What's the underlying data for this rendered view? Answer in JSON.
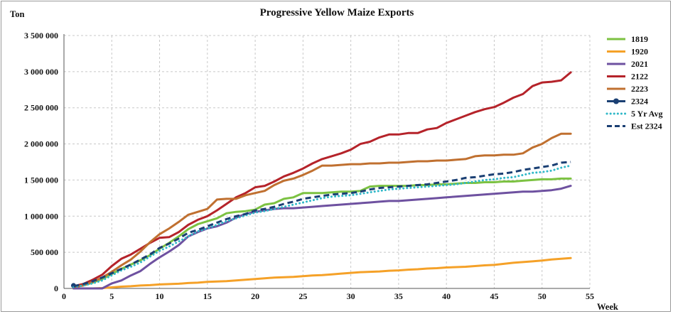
{
  "chart_data": {
    "type": "line",
    "title": "Progressive Yellow Maize Exports",
    "ylabel": "Ton",
    "xlabel": "Week",
    "xlim": [
      0,
      55
    ],
    "ylim": [
      0,
      3500000
    ],
    "xticks": [
      0,
      5,
      10,
      15,
      20,
      25,
      30,
      35,
      40,
      45,
      50,
      55
    ],
    "yticks": [
      0,
      500000,
      1000000,
      1500000,
      2000000,
      2500000,
      3000000,
      3500000
    ],
    "ytick_labels": [
      "0",
      "500 000",
      "1 000 000",
      "1 500 000",
      "2 000 000",
      "2 500 000",
      "3 000 000",
      "3 500 000"
    ],
    "xtick_labels": [
      "0",
      "5",
      "10",
      "15",
      "20",
      "25",
      "30",
      "35",
      "40",
      "45",
      "50",
      "55"
    ],
    "grid": true,
    "legend_position": "right",
    "series": [
      {
        "name": "1819",
        "color": "#7cc242",
        "style": "solid",
        "x": [
          1,
          2,
          3,
          4,
          5,
          6,
          7,
          8,
          9,
          10,
          11,
          12,
          13,
          14,
          15,
          16,
          17,
          18,
          19,
          20,
          21,
          22,
          23,
          24,
          25,
          26,
          27,
          28,
          29,
          30,
          31,
          32,
          33,
          34,
          35,
          36,
          37,
          38,
          39,
          40,
          41,
          42,
          43,
          44,
          45,
          46,
          47,
          48,
          49,
          50,
          51,
          52,
          53
        ],
        "y": [
          20000,
          40000,
          80000,
          130000,
          200000,
          270000,
          330000,
          390000,
          460000,
          550000,
          630000,
          720000,
          820000,
          890000,
          930000,
          970000,
          1040000,
          1060000,
          1070000,
          1090000,
          1160000,
          1180000,
          1240000,
          1260000,
          1320000,
          1320000,
          1320000,
          1330000,
          1340000,
          1340000,
          1350000,
          1410000,
          1420000,
          1420000,
          1420000,
          1420000,
          1430000,
          1430000,
          1440000,
          1440000,
          1450000,
          1460000,
          1460000,
          1470000,
          1470000,
          1480000,
          1480000,
          1490000,
          1500000,
          1510000,
          1510000,
          1520000,
          1520000
        ]
      },
      {
        "name": "1920",
        "color": "#f5a128",
        "style": "solid",
        "x": [
          1,
          2,
          3,
          4,
          5,
          6,
          7,
          8,
          9,
          10,
          11,
          12,
          13,
          14,
          15,
          16,
          17,
          18,
          19,
          20,
          21,
          22,
          23,
          24,
          25,
          26,
          27,
          28,
          29,
          30,
          31,
          32,
          33,
          34,
          35,
          36,
          37,
          38,
          39,
          40,
          41,
          42,
          43,
          44,
          45,
          46,
          47,
          48,
          49,
          50,
          51,
          52,
          53
        ],
        "y": [
          0,
          0,
          0,
          5000,
          15000,
          25000,
          30000,
          40000,
          45000,
          55000,
          60000,
          65000,
          75000,
          80000,
          90000,
          95000,
          100000,
          110000,
          120000,
          130000,
          140000,
          150000,
          155000,
          160000,
          170000,
          180000,
          185000,
          195000,
          205000,
          215000,
          225000,
          230000,
          235000,
          245000,
          250000,
          260000,
          265000,
          275000,
          280000,
          290000,
          295000,
          300000,
          310000,
          320000,
          325000,
          340000,
          355000,
          365000,
          375000,
          385000,
          400000,
          410000,
          420000
        ]
      },
      {
        "name": "2021",
        "color": "#6e51a0",
        "style": "solid",
        "x": [
          1,
          2,
          3,
          4,
          5,
          6,
          7,
          8,
          9,
          10,
          11,
          12,
          13,
          14,
          15,
          16,
          17,
          18,
          19,
          20,
          21,
          22,
          23,
          24,
          25,
          26,
          27,
          28,
          29,
          30,
          31,
          32,
          33,
          34,
          35,
          36,
          37,
          38,
          39,
          40,
          41,
          42,
          43,
          44,
          45,
          46,
          47,
          48,
          49,
          50,
          51,
          52,
          53
        ],
        "y": [
          0,
          0,
          0,
          0,
          70000,
          110000,
          180000,
          240000,
          340000,
          430000,
          510000,
          600000,
          720000,
          780000,
          830000,
          860000,
          910000,
          980000,
          1030000,
          1060000,
          1080000,
          1100000,
          1110000,
          1110000,
          1120000,
          1130000,
          1140000,
          1150000,
          1160000,
          1170000,
          1180000,
          1190000,
          1200000,
          1210000,
          1210000,
          1220000,
          1230000,
          1240000,
          1250000,
          1260000,
          1270000,
          1280000,
          1290000,
          1300000,
          1310000,
          1320000,
          1330000,
          1340000,
          1340000,
          1350000,
          1360000,
          1380000,
          1420000
        ]
      },
      {
        "name": "2122",
        "color": "#b5232a",
        "style": "solid",
        "x": [
          1,
          2,
          3,
          4,
          5,
          6,
          7,
          8,
          9,
          10,
          11,
          12,
          13,
          14,
          15,
          16,
          17,
          18,
          19,
          20,
          21,
          22,
          23,
          24,
          25,
          26,
          27,
          28,
          29,
          30,
          31,
          32,
          33,
          34,
          35,
          36,
          37,
          38,
          39,
          40,
          41,
          42,
          43,
          44,
          45,
          46,
          47,
          48,
          49,
          50,
          51,
          52,
          53
        ],
        "y": [
          30000,
          60000,
          120000,
          190000,
          310000,
          410000,
          470000,
          550000,
          630000,
          700000,
          710000,
          780000,
          880000,
          950000,
          1000000,
          1080000,
          1170000,
          1260000,
          1320000,
          1400000,
          1420000,
          1480000,
          1550000,
          1600000,
          1660000,
          1730000,
          1790000,
          1830000,
          1870000,
          1920000,
          2000000,
          2030000,
          2090000,
          2130000,
          2130000,
          2150000,
          2150000,
          2200000,
          2220000,
          2290000,
          2340000,
          2390000,
          2440000,
          2480000,
          2510000,
          2570000,
          2640000,
          2690000,
          2800000,
          2850000,
          2860000,
          2880000,
          2990000
        ]
      },
      {
        "name": "2223",
        "color": "#c07030",
        "style": "solid",
        "x": [
          1,
          2,
          3,
          4,
          5,
          6,
          7,
          8,
          9,
          10,
          11,
          12,
          13,
          14,
          15,
          16,
          17,
          18,
          19,
          20,
          21,
          22,
          23,
          24,
          25,
          26,
          27,
          28,
          29,
          30,
          31,
          32,
          33,
          34,
          35,
          36,
          37,
          38,
          39,
          40,
          41,
          42,
          43,
          44,
          45,
          46,
          47,
          48,
          49,
          50,
          51,
          52,
          53
        ],
        "y": [
          20000,
          40000,
          90000,
          150000,
          230000,
          320000,
          400000,
          510000,
          640000,
          750000,
          830000,
          920000,
          1020000,
          1060000,
          1100000,
          1230000,
          1240000,
          1240000,
          1290000,
          1320000,
          1350000,
          1430000,
          1490000,
          1520000,
          1570000,
          1630000,
          1700000,
          1700000,
          1710000,
          1720000,
          1720000,
          1730000,
          1730000,
          1740000,
          1740000,
          1750000,
          1760000,
          1760000,
          1770000,
          1770000,
          1780000,
          1790000,
          1830000,
          1840000,
          1840000,
          1850000,
          1850000,
          1870000,
          1950000,
          2000000,
          2080000,
          2140000,
          2140000
        ]
      },
      {
        "name": "2324",
        "color": "#1a3f73",
        "style": "marker",
        "x": [
          1
        ],
        "y": [
          40000
        ]
      },
      {
        "name": "5 Yr Avg",
        "color": "#30b8c8",
        "style": "dotted",
        "x": [
          1,
          2,
          3,
          4,
          5,
          6,
          7,
          8,
          9,
          10,
          11,
          12,
          13,
          14,
          15,
          16,
          17,
          18,
          19,
          20,
          21,
          22,
          23,
          24,
          25,
          26,
          27,
          28,
          29,
          30,
          31,
          32,
          33,
          34,
          35,
          36,
          37,
          38,
          39,
          40,
          41,
          42,
          43,
          44,
          45,
          46,
          47,
          48,
          49,
          50,
          51,
          52,
          53
        ],
        "y": [
          20000,
          40000,
          70000,
          110000,
          180000,
          250000,
          300000,
          360000,
          440000,
          520000,
          580000,
          650000,
          720000,
          790000,
          830000,
          880000,
          930000,
          970000,
          1010000,
          1050000,
          1070000,
          1100000,
          1130000,
          1160000,
          1190000,
          1220000,
          1250000,
          1270000,
          1280000,
          1290000,
          1310000,
          1330000,
          1350000,
          1370000,
          1380000,
          1390000,
          1400000,
          1410000,
          1420000,
          1430000,
          1440000,
          1460000,
          1480000,
          1500000,
          1510000,
          1530000,
          1540000,
          1570000,
          1600000,
          1610000,
          1630000,
          1670000,
          1700000
        ]
      },
      {
        "name": "Est 2324",
        "color": "#1a3f73",
        "style": "dashed",
        "x": [
          1,
          2,
          3,
          4,
          5,
          6,
          7,
          8,
          9,
          10,
          11,
          12,
          13,
          14,
          15,
          16,
          17,
          18,
          19,
          20,
          21,
          22,
          23,
          24,
          25,
          26,
          27,
          28,
          29,
          30,
          31,
          32,
          33,
          34,
          35,
          36,
          37,
          38,
          39,
          40,
          41,
          42,
          43,
          44,
          45,
          46,
          47,
          48,
          49,
          50,
          51,
          52,
          53
        ],
        "y": [
          30000,
          60000,
          100000,
          150000,
          210000,
          270000,
          330000,
          400000,
          470000,
          560000,
          620000,
          690000,
          770000,
          810000,
          860000,
          910000,
          960000,
          1000000,
          1030000,
          1080000,
          1100000,
          1130000,
          1170000,
          1200000,
          1240000,
          1260000,
          1280000,
          1300000,
          1310000,
          1320000,
          1340000,
          1370000,
          1390000,
          1400000,
          1410000,
          1420000,
          1430000,
          1440000,
          1460000,
          1480000,
          1500000,
          1530000,
          1540000,
          1560000,
          1580000,
          1590000,
          1610000,
          1640000,
          1660000,
          1680000,
          1700000,
          1740000,
          1750000
        ]
      }
    ]
  }
}
